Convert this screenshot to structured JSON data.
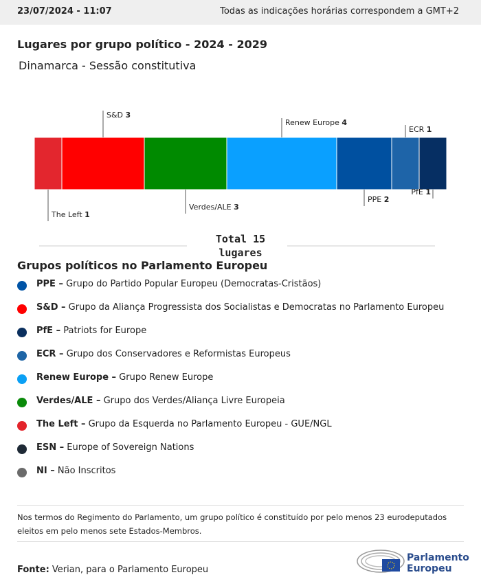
{
  "header": {
    "datetime": "23/07/2024 - 11:07",
    "timezone_note": "Todas as indicações horárias correspondem a GMT+2"
  },
  "chart_data": {
    "type": "stacked-bar",
    "title": "Lugares por grupo político - 2024 - 2029",
    "subtitle": "Dinamarca - Sessão constitutiva",
    "series": [
      {
        "name": "The Left",
        "color": "#e3262e",
        "values": [
          1
        ]
      },
      {
        "name": "S&D",
        "color": "#ff0000",
        "values": [
          3
        ]
      },
      {
        "name": "Verdes/ALE",
        "color": "#008a00",
        "values": [
          3
        ]
      },
      {
        "name": "Renew Europe",
        "color": "#0aa0ff",
        "values": [
          4
        ]
      },
      {
        "name": "PPE",
        "color": "#0050a0",
        "values": [
          2
        ]
      },
      {
        "name": "ECR",
        "color": "#1e64a8",
        "values": [
          1
        ]
      },
      {
        "name": "PfE",
        "color": "#062f63",
        "values": [
          1
        ]
      }
    ],
    "xlim": [
      0,
      15
    ],
    "total_label": "Total",
    "total": 15,
    "total_unit": "lugares"
  },
  "legend": {
    "title": "Grupos políticos no Parlamento Europeu",
    "items": [
      {
        "term": "PPE –",
        "text": "Grupo do Partido Popular Europeu (Democratas-Cristãos)",
        "color": "#0054a6"
      },
      {
        "term": "S&D –",
        "text": "Grupo da Aliança Progressista dos Socialistas e Democratas no Parlamento Europeu",
        "color": "#ff0000"
      },
      {
        "term": "PfE –",
        "text": "Patriots for Europe",
        "color": "#0a2f5e"
      },
      {
        "term": "ECR –",
        "text": "Grupo dos Conservadores e Reformistas Europeus",
        "color": "#1e65a6"
      },
      {
        "term": "Renew Europe –",
        "text": "Grupo Renew Europe",
        "color": "#0aa0f5"
      },
      {
        "term": "Verdes/ALE –",
        "text": "Grupo dos Verdes/Aliança Livre Europeia",
        "color": "#0a8a0a"
      },
      {
        "term": "The Left –",
        "text": "Grupo da Esquerda no Parlamento Europeu - GUE/NGL",
        "color": "#e3242b"
      },
      {
        "term": "ESN –",
        "text": "Europe of Sovereign Nations",
        "color": "#1f2a36"
      },
      {
        "term": "NI –",
        "text": "Não Inscritos",
        "color": "#6b6b6b"
      }
    ]
  },
  "note": "Nos termos do Regimento do Parlamento, um grupo político é constituído por pelo menos 23 eurodeputados eleitos em pelo menos sete Estados-Membros.",
  "source": {
    "label": "Fonte:",
    "text": "Verian, para o Parlamento Europeu"
  },
  "logo": {
    "line1": "Parlamento",
    "line2": "Europeu"
  }
}
